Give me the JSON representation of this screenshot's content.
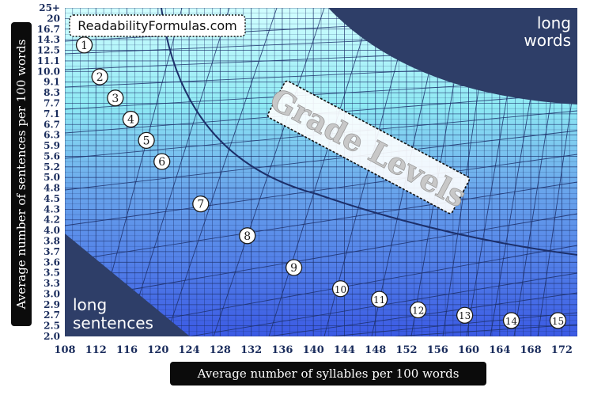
{
  "chart_data": {
    "type": "line",
    "title": "Grade Levels",
    "watermark": "ReadabilityFormulas.com",
    "xlabel": "Average number of syllables per 100 words",
    "ylabel": "Average number of sentences per 100 words",
    "x_ticks": [
      "108",
      "112",
      "116",
      "120",
      "124",
      "128",
      "132",
      "136",
      "140",
      "144",
      "148",
      "152",
      "156",
      "160",
      "164",
      "168",
      "172"
    ],
    "xlim": [
      108,
      174
    ],
    "y_ticks": [
      "25+",
      "20",
      "16.7",
      "14.3",
      "12.5",
      "11.1",
      "10.0",
      "9.1",
      "8.3",
      "7.7",
      "7.1",
      "6.7",
      "6.3",
      "5.9",
      "5.6",
      "5.2",
      "5.0",
      "4.8",
      "4.5",
      "4.3",
      "4.2",
      "4.0",
      "3.8",
      "3.7",
      "3.6",
      "3.5",
      "3.3",
      "3.0",
      "2.9",
      "2.7",
      "2.5",
      "2.0"
    ],
    "regions": [
      {
        "label_lines": [
          "long",
          "words"
        ],
        "position": "top-right"
      },
      {
        "label_lines": [
          "long",
          "sentences"
        ],
        "position": "bottom-left"
      }
    ],
    "grade_labels": [
      {
        "grade": "1",
        "x": 110.5,
        "y_index": 3.5
      },
      {
        "grade": "2",
        "x": 112.5,
        "y_index": 6.5
      },
      {
        "grade": "3",
        "x": 114.5,
        "y_index": 8.5
      },
      {
        "grade": "4",
        "x": 116.5,
        "y_index": 10.5
      },
      {
        "grade": "5",
        "x": 118.5,
        "y_index": 12.5
      },
      {
        "grade": "6",
        "x": 120.5,
        "y_index": 14.5
      },
      {
        "grade": "7",
        "x": 125.5,
        "y_index": 18.5
      },
      {
        "grade": "8",
        "x": 131.5,
        "y_index": 21.5
      },
      {
        "grade": "9",
        "x": 137.5,
        "y_index": 24.5
      },
      {
        "grade": "10",
        "x": 143.5,
        "y_index": 26.5
      },
      {
        "grade": "11",
        "x": 148.5,
        "y_index": 27.5
      },
      {
        "grade": "12",
        "x": 153.5,
        "y_index": 28.5
      },
      {
        "grade": "13",
        "x": 159.5,
        "y_index": 29.0
      },
      {
        "grade": "14",
        "x": 165.5,
        "y_index": 29.5
      },
      {
        "grade": "15",
        "x": 171.5,
        "y_index": 29.5
      }
    ],
    "colors": {
      "top": "#ccffff",
      "bottom": "#3d5ce6",
      "grid": "#1c2f6a",
      "corner": "#2e3e68",
      "label_box": "#0b0b0b",
      "tick_text": "#1a2c5c"
    }
  }
}
